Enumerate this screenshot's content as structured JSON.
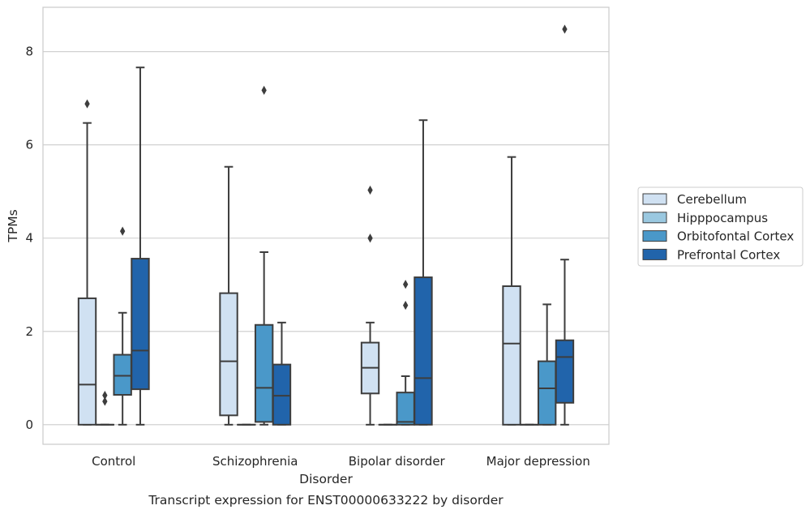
{
  "chart_data": {
    "type": "box",
    "caption": "Transcript expression for ENST00000633222 by disorder",
    "xlabel": "Disorder",
    "ylabel": "TPMs",
    "ylim": [
      -0.42,
      8.95
    ],
    "yticks": [
      0,
      2,
      4,
      6,
      8
    ],
    "grid": true,
    "legend_position": "right",
    "categories": [
      "Control",
      "Schizophrenia",
      "Bipolar disorder",
      "Major depression"
    ],
    "series": [
      {
        "name": "Cerebellum",
        "color": "#d0e1f2",
        "boxes": [
          {
            "whislo": 0,
            "q1": 0,
            "med": 0.86,
            "q3": 2.71,
            "whishi": 6.47,
            "fliers": [
              6.88
            ]
          },
          {
            "whislo": 0,
            "q1": 0.2,
            "med": 1.36,
            "q3": 2.82,
            "whishi": 5.53,
            "fliers": []
          },
          {
            "whislo": 0,
            "q1": 0.67,
            "med": 1.22,
            "q3": 1.76,
            "whishi": 2.19,
            "fliers": [
              4.0,
              5.03
            ]
          },
          {
            "whislo": 0,
            "q1": 0,
            "med": 1.74,
            "q3": 2.97,
            "whishi": 5.74,
            "fliers": []
          }
        ]
      },
      {
        "name": "Hipppocampus",
        "color": "#9ac8e0",
        "boxes": [
          {
            "whislo": 0,
            "q1": 0,
            "med": 0,
            "q3": 0,
            "whishi": 0,
            "fliers": [
              0.5,
              0.63
            ]
          },
          {
            "whislo": 0,
            "q1": 0,
            "med": 0,
            "q3": 0,
            "whishi": 0,
            "fliers": []
          },
          {
            "whislo": 0,
            "q1": 0,
            "med": 0,
            "q3": 0,
            "whishi": 0,
            "fliers": []
          },
          {
            "whislo": 0,
            "q1": 0,
            "med": 0,
            "q3": 0,
            "whishi": 0,
            "fliers": []
          }
        ]
      },
      {
        "name": "Orbitofontal Cortex",
        "color": "#4a98c9",
        "boxes": [
          {
            "whislo": 0,
            "q1": 0.64,
            "med": 1.05,
            "q3": 1.5,
            "whishi": 2.4,
            "fliers": [
              4.15
            ]
          },
          {
            "whislo": 0,
            "q1": 0.06,
            "med": 0.79,
            "q3": 2.14,
            "whishi": 3.7,
            "fliers": [
              7.17
            ]
          },
          {
            "whislo": 0,
            "q1": 0,
            "med": 0.06,
            "q3": 0.69,
            "whishi": 1.04,
            "fliers": [
              2.56,
              3.01
            ]
          },
          {
            "whislo": 0,
            "q1": 0,
            "med": 0.78,
            "q3": 1.36,
            "whishi": 2.58,
            "fliers": []
          }
        ]
      },
      {
        "name": "Prefrontal Cortex",
        "color": "#2164ab",
        "boxes": [
          {
            "whislo": 0,
            "q1": 0.76,
            "med": 1.59,
            "q3": 3.56,
            "whishi": 7.66,
            "fliers": []
          },
          {
            "whislo": 0,
            "q1": 0,
            "med": 0.62,
            "q3": 1.29,
            "whishi": 2.19,
            "fliers": []
          },
          {
            "whislo": 0,
            "q1": 0,
            "med": 1.0,
            "q3": 3.16,
            "whishi": 6.53,
            "fliers": []
          },
          {
            "whislo": 0,
            "q1": 0.47,
            "med": 1.45,
            "q3": 1.81,
            "whishi": 3.54,
            "fliers": [
              8.48
            ]
          }
        ]
      }
    ]
  }
}
